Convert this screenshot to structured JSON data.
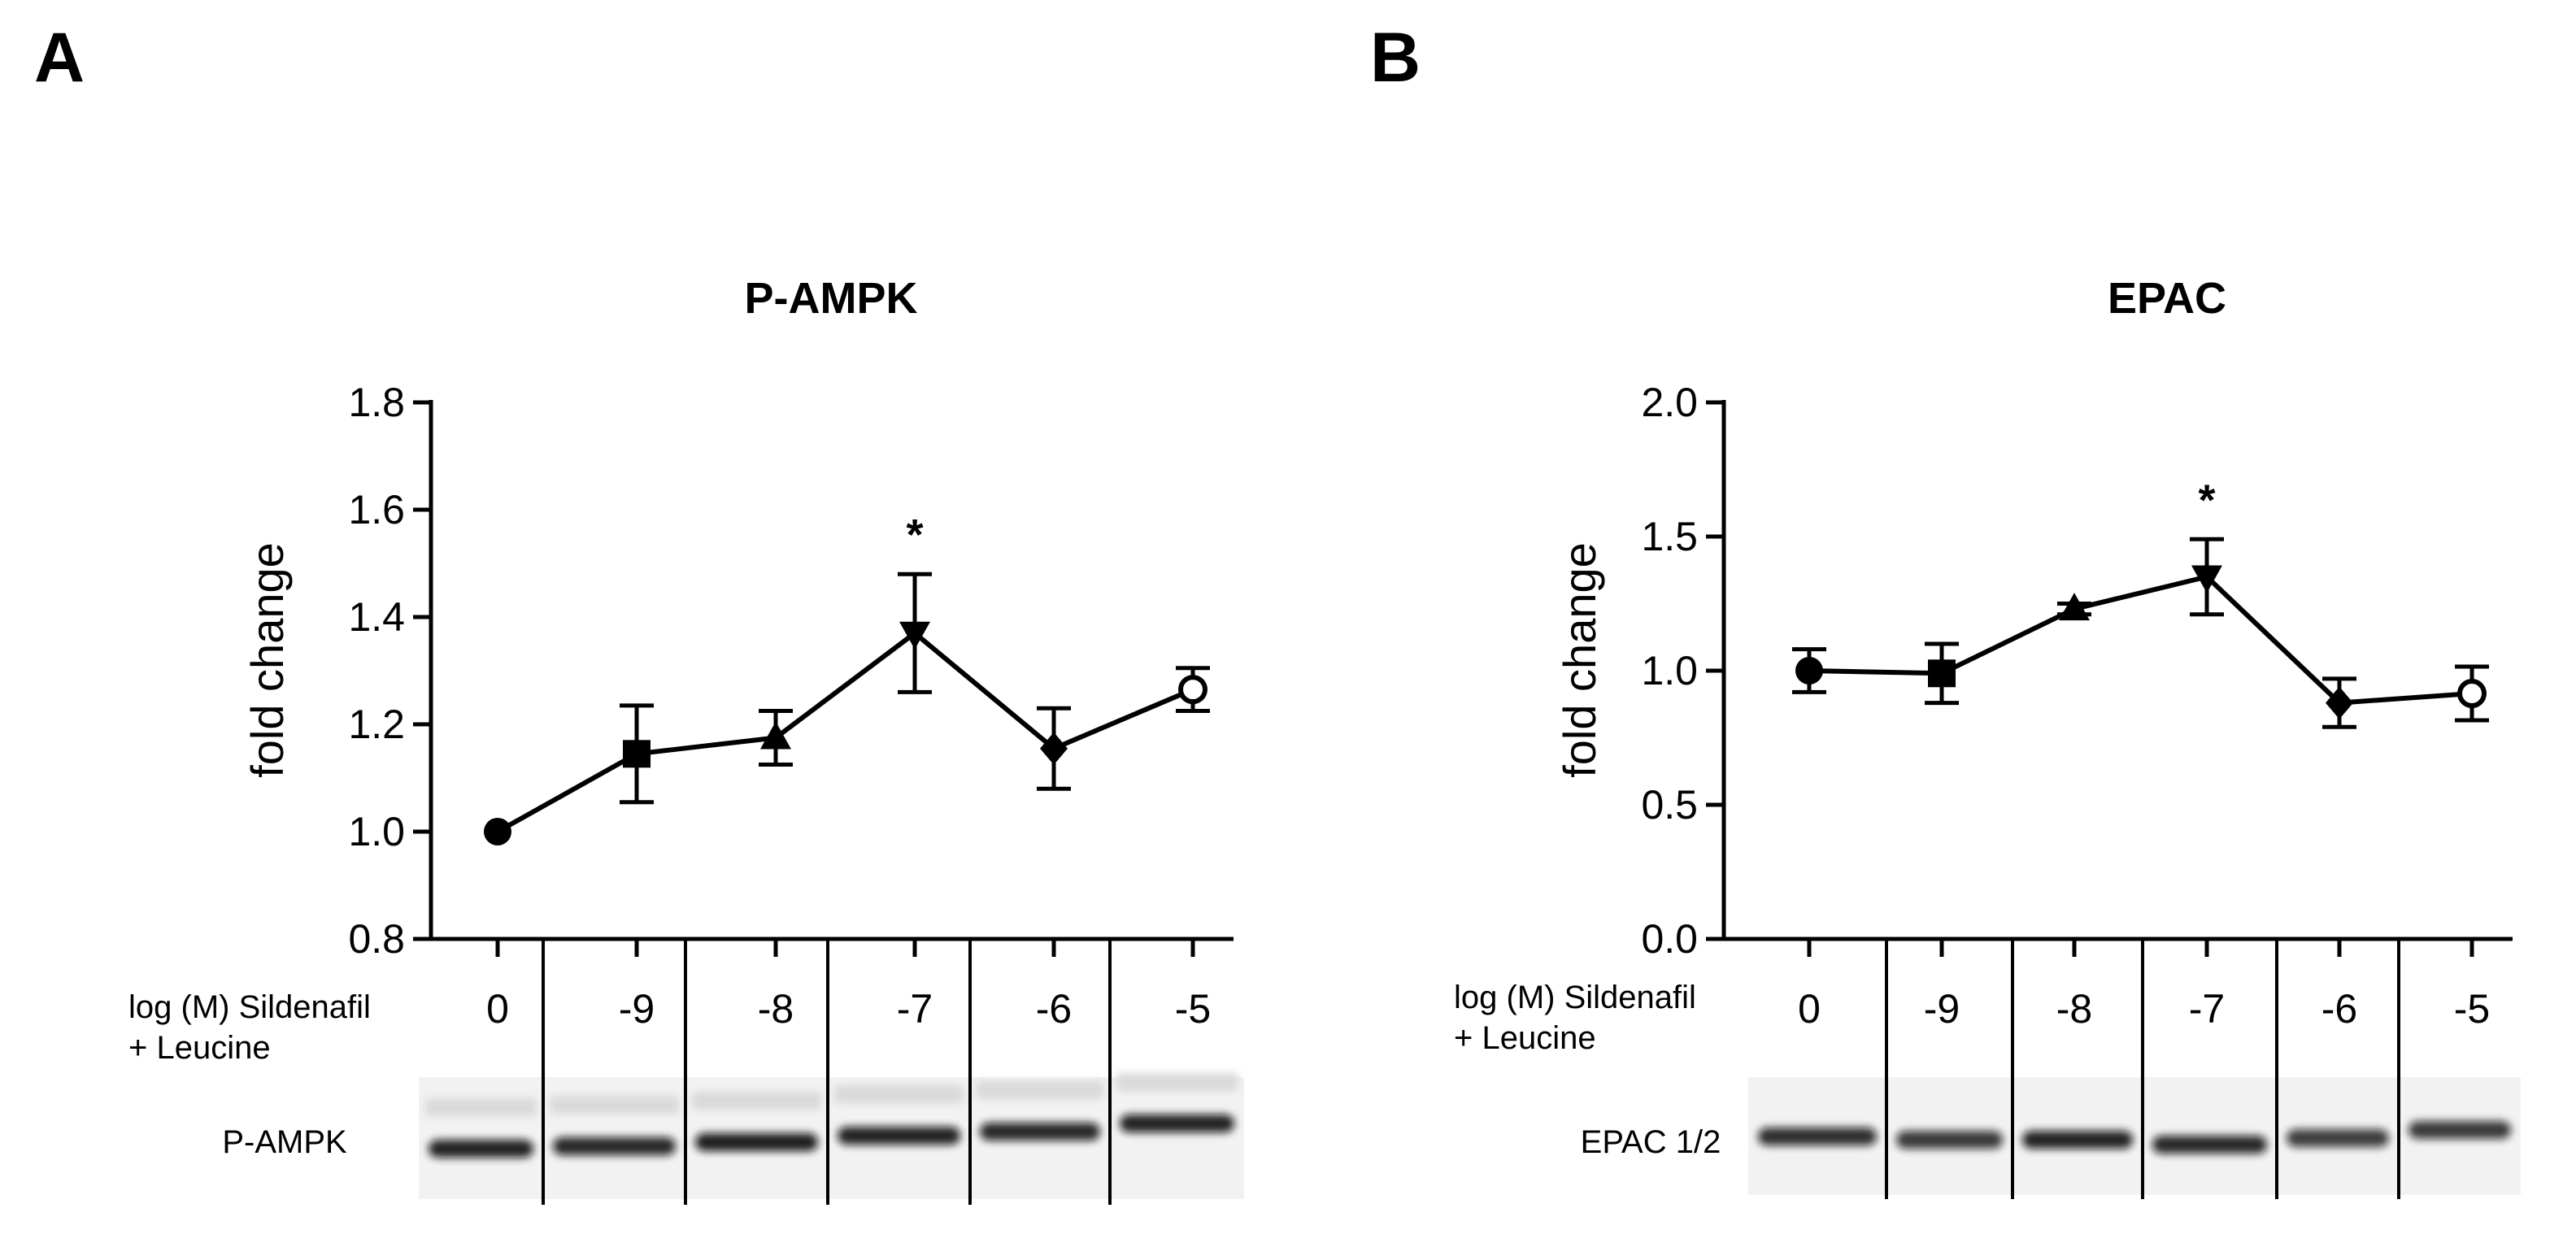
{
  "panels": [
    {
      "letter": "A",
      "blot_label": "P-AMPK",
      "condition_label_line1": "log (M) Sildenafil",
      "condition_label_line2": "+ Leucine"
    },
    {
      "letter": "B",
      "blot_label": "EPAC 1/2",
      "condition_label_line1": "log (M) Sildenafil",
      "condition_label_line2": "+ Leucine"
    }
  ],
  "chart_data": [
    {
      "type": "line",
      "title": "P-AMPK",
      "xlabel": "",
      "ylabel": "fold change",
      "categories": [
        "0",
        "-9",
        "-8",
        "-7",
        "-6",
        "-5"
      ],
      "ylim": [
        0.8,
        1.8
      ],
      "yticks": [
        "0.8",
        "1.0",
        "1.2",
        "1.4",
        "1.6",
        "1.8"
      ],
      "series": [
        {
          "values": [
            1.0,
            1.145,
            1.175,
            1.37,
            1.155,
            1.265
          ],
          "errors": [
            0.0,
            0.09,
            0.05,
            0.11,
            0.075,
            0.04
          ],
          "markers": [
            "circle",
            "square",
            "triangle-up",
            "triangle-down",
            "diamond",
            "open-circle"
          ]
        }
      ],
      "annotations": [
        {
          "category": "-7",
          "text": "*"
        }
      ],
      "grid": false,
      "legend": "none"
    },
    {
      "type": "line",
      "title": "EPAC",
      "xlabel": "",
      "ylabel": "fold change",
      "categories": [
        "0",
        "-9",
        "-8",
        "-7",
        "-6",
        "-5"
      ],
      "ylim": [
        0.0,
        2.0
      ],
      "yticks": [
        "0.0",
        "0.5",
        "1.0",
        "1.5",
        "2.0"
      ],
      "series": [
        {
          "values": [
            1.0,
            0.99,
            1.23,
            1.35,
            0.88,
            0.915
          ],
          "errors": [
            0.08,
            0.11,
            0.02,
            0.14,
            0.09,
            0.1
          ],
          "markers": [
            "circle",
            "square",
            "triangle-up",
            "triangle-down",
            "diamond",
            "open-circle"
          ]
        }
      ],
      "annotations": [
        {
          "category": "-7",
          "text": "*"
        }
      ],
      "grid": false,
      "legend": "none"
    }
  ]
}
